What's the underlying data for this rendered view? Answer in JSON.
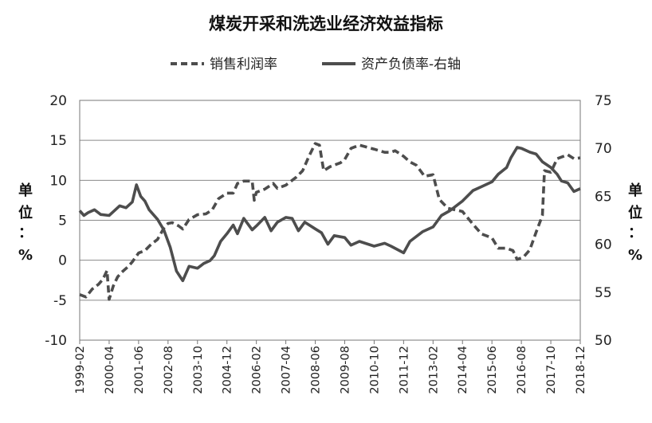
{
  "chart_data": {
    "type": "line",
    "title": "煤炭开采和洗选业经济效益指标",
    "legend": {
      "position": "top",
      "entries": [
        "销售利润率",
        "资产负债率-右轴"
      ]
    },
    "left_axis": {
      "unit_label": [
        "单",
        "位",
        "：",
        "%"
      ],
      "ylim": [
        -10,
        20
      ],
      "ticks": [
        "20",
        "15",
        "10",
        "5",
        "0",
        "-5",
        "-10"
      ]
    },
    "right_axis": {
      "unit_label": [
        "单",
        "位",
        "：",
        "%"
      ],
      "ylim": [
        50,
        75
      ],
      "ticks": [
        "75",
        "70",
        "65",
        "60",
        "55",
        "50"
      ]
    },
    "grid": true,
    "categories": [
      "1999-02",
      "2000-04",
      "2001-06",
      "2002-08",
      "2003-10",
      "2004-12",
      "2006-02",
      "2007-04",
      "2008-06",
      "2009-08",
      "2010-10",
      "2011-12",
      "2013-02",
      "2014-04",
      "2015-06",
      "2016-08",
      "2017-10",
      "2018-12"
    ],
    "series": [
      {
        "name": "销售利润率",
        "axis": "left",
        "style": "dashed",
        "color": "#4d4d4d",
        "points": [
          [
            "1999-02",
            -4.3
          ],
          [
            "1999-05",
            -4.6
          ],
          [
            "1999-08",
            -3.6
          ],
          [
            "1999-11",
            -3.0
          ],
          [
            "2000-01",
            -2.4
          ],
          [
            "2000-03",
            -1.3
          ],
          [
            "2000-04",
            -4.9
          ],
          [
            "2000-06",
            -3.2
          ],
          [
            "2000-08",
            -2.1
          ],
          [
            "2000-10",
            -1.5
          ],
          [
            "2001-01",
            -0.8
          ],
          [
            "2001-03",
            -0.2
          ],
          [
            "2001-06",
            0.9
          ],
          [
            "2001-09",
            1.2
          ],
          [
            "2001-12",
            2.0
          ],
          [
            "2002-03",
            2.6
          ],
          [
            "2002-06",
            4.0
          ],
          [
            "2002-08",
            4.6
          ],
          [
            "2002-10",
            4.7
          ],
          [
            "2003-01",
            4.3
          ],
          [
            "2003-03",
            3.9
          ],
          [
            "2003-06",
            5.1
          ],
          [
            "2003-10",
            5.7
          ],
          [
            "2004-02",
            5.8
          ],
          [
            "2004-05",
            6.3
          ],
          [
            "2004-08",
            7.7
          ],
          [
            "2004-12",
            8.4
          ],
          [
            "2005-03",
            8.4
          ],
          [
            "2005-05",
            9.6
          ],
          [
            "2005-08",
            9.9
          ],
          [
            "2005-12",
            9.9
          ],
          [
            "2006-01",
            7.5
          ],
          [
            "2006-02",
            8.5
          ],
          [
            "2006-06",
            8.9
          ],
          [
            "2006-10",
            9.6
          ],
          [
            "2006-12",
            9.0
          ],
          [
            "2007-04",
            9.4
          ],
          [
            "2007-09",
            10.4
          ],
          [
            "2007-12",
            11.2
          ],
          [
            "2008-03",
            13.0
          ],
          [
            "2008-06",
            14.6
          ],
          [
            "2008-08",
            14.4
          ],
          [
            "2008-10",
            11.2
          ],
          [
            "2009-01",
            11.7
          ],
          [
            "2009-06",
            12.2
          ],
          [
            "2009-08",
            12.6
          ],
          [
            "2009-11",
            14.0
          ],
          [
            "2010-03",
            14.4
          ],
          [
            "2010-10",
            13.9
          ],
          [
            "2011-03",
            13.5
          ],
          [
            "2011-06",
            13.5
          ],
          [
            "2011-08",
            13.7
          ],
          [
            "2011-12",
            13.0
          ],
          [
            "2012-03",
            12.3
          ],
          [
            "2012-06",
            11.9
          ],
          [
            "2012-10",
            10.5
          ],
          [
            "2013-02",
            10.7
          ],
          [
            "2013-05",
            7.6
          ],
          [
            "2013-09",
            6.5
          ],
          [
            "2014-04",
            6.1
          ],
          [
            "2014-09",
            4.5
          ],
          [
            "2015-01",
            3.3
          ],
          [
            "2015-06",
            2.8
          ],
          [
            "2015-09",
            1.5
          ],
          [
            "2016-01",
            1.5
          ],
          [
            "2016-04",
            1.2
          ],
          [
            "2016-06",
            0.1
          ],
          [
            "2016-09",
            0.4
          ],
          [
            "2016-12",
            1.3
          ],
          [
            "2017-03",
            3.5
          ],
          [
            "2017-06",
            5.6
          ],
          [
            "2017-07",
            11.2
          ],
          [
            "2017-10",
            11.0
          ],
          [
            "2018-01",
            12.7
          ],
          [
            "2018-06",
            13.2
          ],
          [
            "2018-09",
            12.7
          ],
          [
            "2018-12",
            12.8
          ]
        ]
      },
      {
        "name": "资产负债率-右轴",
        "axis": "right",
        "style": "solid",
        "color": "#4d4d4d",
        "points": [
          [
            "1999-02",
            63.5
          ],
          [
            "1999-04",
            63.0
          ],
          [
            "1999-06",
            63.3
          ],
          [
            "1999-09",
            63.6
          ],
          [
            "1999-12",
            63.1
          ],
          [
            "2000-04",
            63.0
          ],
          [
            "2000-06",
            63.4
          ],
          [
            "2000-09",
            64.0
          ],
          [
            "2000-12",
            63.8
          ],
          [
            "2001-03",
            64.4
          ],
          [
            "2001-05",
            66.2
          ],
          [
            "2001-07",
            65.0
          ],
          [
            "2001-09",
            64.5
          ],
          [
            "2001-11",
            63.6
          ],
          [
            "2002-03",
            62.6
          ],
          [
            "2002-06",
            61.5
          ],
          [
            "2002-09",
            59.7
          ],
          [
            "2002-12",
            57.2
          ],
          [
            "2003-03",
            56.2
          ],
          [
            "2003-06",
            57.7
          ],
          [
            "2003-10",
            57.5
          ],
          [
            "2004-01",
            58.0
          ],
          [
            "2004-04",
            58.3
          ],
          [
            "2004-06",
            58.8
          ],
          [
            "2004-09",
            60.3
          ],
          [
            "2004-12",
            61.1
          ],
          [
            "2005-03",
            62.0
          ],
          [
            "2005-05",
            61.1
          ],
          [
            "2005-08",
            62.7
          ],
          [
            "2005-12",
            61.5
          ],
          [
            "2006-02",
            61.9
          ],
          [
            "2006-06",
            62.8
          ],
          [
            "2006-09",
            61.4
          ],
          [
            "2006-12",
            62.3
          ],
          [
            "2007-04",
            62.8
          ],
          [
            "2007-07",
            62.7
          ],
          [
            "2007-10",
            61.4
          ],
          [
            "2008-01",
            62.3
          ],
          [
            "2008-06",
            61.6
          ],
          [
            "2008-09",
            61.2
          ],
          [
            "2008-12",
            60.0
          ],
          [
            "2009-03",
            60.9
          ],
          [
            "2009-08",
            60.7
          ],
          [
            "2009-11",
            59.9
          ],
          [
            "2010-03",
            60.3
          ],
          [
            "2010-10",
            59.8
          ],
          [
            "2011-03",
            60.1
          ],
          [
            "2011-06",
            59.8
          ],
          [
            "2011-12",
            59.1
          ],
          [
            "2012-03",
            60.3
          ],
          [
            "2012-09",
            61.3
          ],
          [
            "2013-02",
            61.8
          ],
          [
            "2013-06",
            63.0
          ],
          [
            "2013-10",
            63.5
          ],
          [
            "2014-04",
            64.5
          ],
          [
            "2014-09",
            65.6
          ],
          [
            "2015-01",
            66.0
          ],
          [
            "2015-06",
            66.5
          ],
          [
            "2015-09",
            67.3
          ],
          [
            "2016-01",
            68.0
          ],
          [
            "2016-03",
            69.0
          ],
          [
            "2016-06",
            70.1
          ],
          [
            "2016-08",
            70.0
          ],
          [
            "2016-12",
            69.6
          ],
          [
            "2017-03",
            69.4
          ],
          [
            "2017-06",
            68.6
          ],
          [
            "2017-10",
            68.0
          ],
          [
            "2018-01",
            67.3
          ],
          [
            "2018-03",
            66.6
          ],
          [
            "2018-06",
            66.4
          ],
          [
            "2018-09",
            65.5
          ],
          [
            "2018-12",
            65.8
          ]
        ]
      }
    ]
  }
}
